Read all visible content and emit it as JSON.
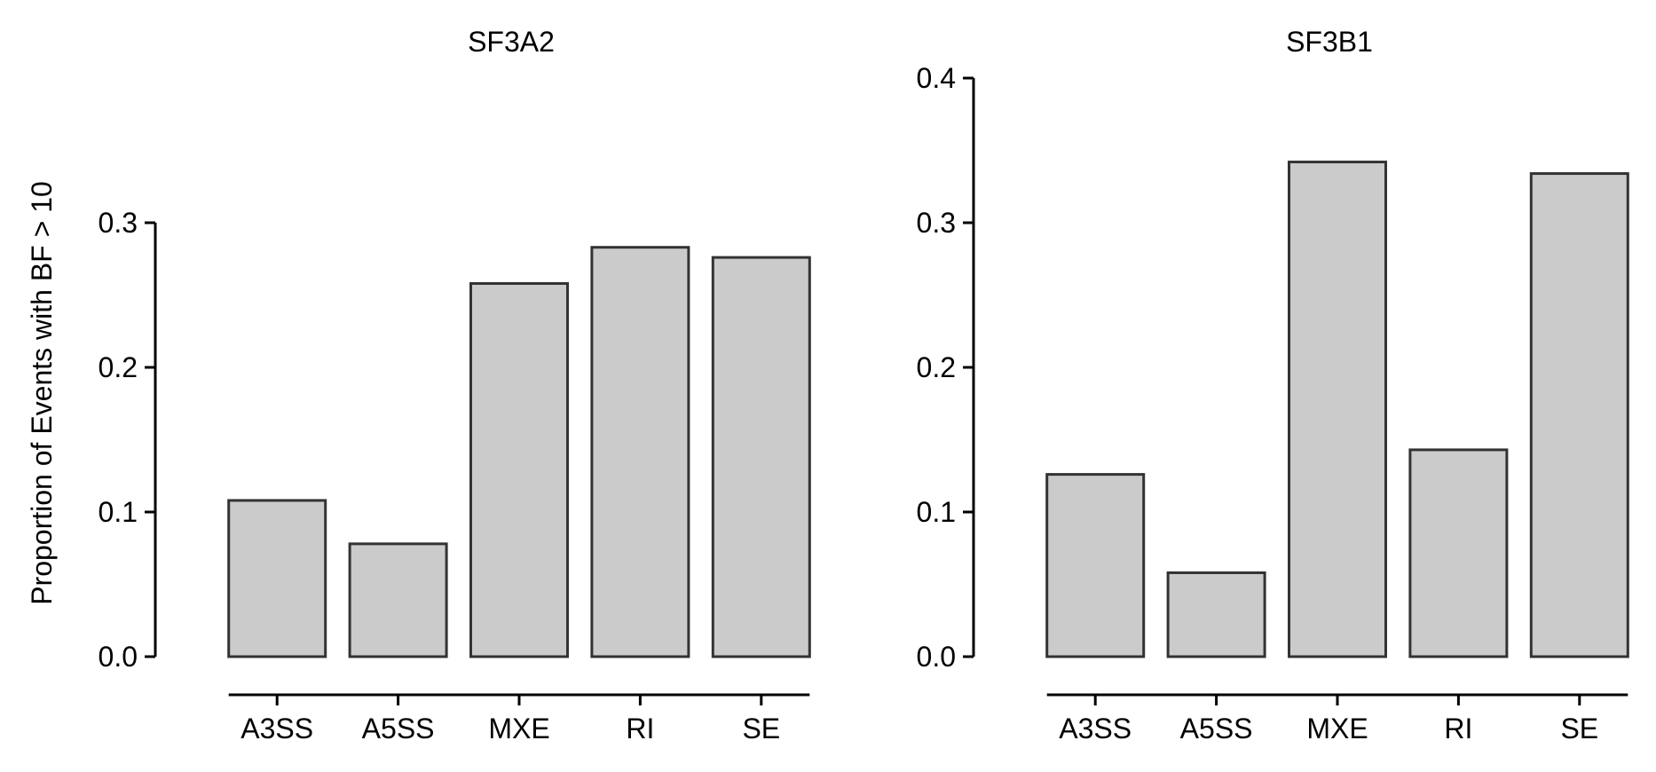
{
  "chart_data": {
    "type": "bar",
    "ylabel": "Proportion of Events with BF > 10",
    "bar_color": "#cbcbcb",
    "edge_color": "#333333",
    "grid": false,
    "panels": [
      {
        "title": "SF3A2",
        "categories": [
          "A3SS",
          "A5SS",
          "MXE",
          "RI",
          "SE"
        ],
        "values": [
          0.108,
          0.078,
          0.258,
          0.283,
          0.276
        ],
        "ylim": [
          0,
          0.3
        ],
        "yticks": [
          0.0,
          0.1,
          0.2,
          0.3
        ],
        "ytick_labels": [
          "0.0",
          "0.1",
          "0.2",
          "0.3"
        ]
      },
      {
        "title": "SF3B1",
        "categories": [
          "A3SS",
          "A5SS",
          "MXE",
          "RI",
          "SE"
        ],
        "values": [
          0.126,
          0.058,
          0.342,
          0.143,
          0.334
        ],
        "ylim": [
          0,
          0.4
        ],
        "yticks": [
          0.0,
          0.1,
          0.2,
          0.3,
          0.4
        ],
        "ytick_labels": [
          "0.0",
          "0.1",
          "0.2",
          "0.3",
          "0.4"
        ]
      }
    ]
  }
}
